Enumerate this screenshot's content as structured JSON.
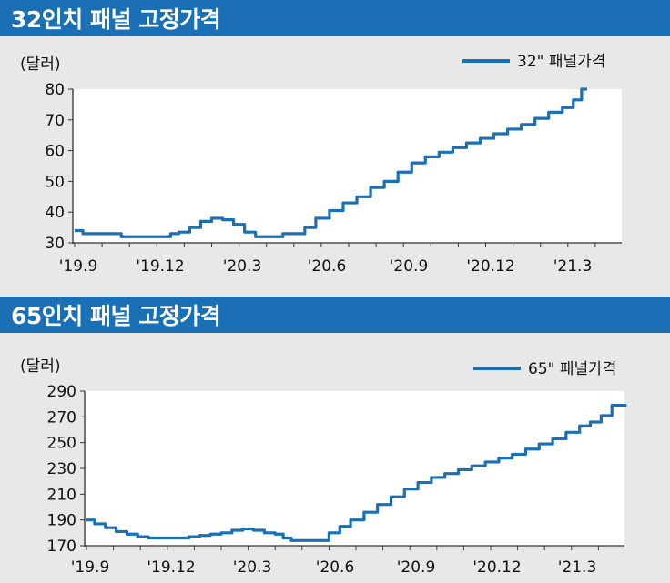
{
  "chart_data": [
    {
      "type": "line",
      "title": "32인치 패널 고정가격",
      "ylabel": "(달러)",
      "ylim": [
        30,
        80
      ],
      "yticks": [
        30,
        40,
        50,
        60,
        70,
        80
      ],
      "xticks": [
        "'19.9",
        "'19.12",
        "'20.3",
        "'20.6",
        "'20.9",
        "'20.12",
        "'21.3"
      ],
      "x_months": [
        "2019-09",
        "2019-10",
        "2019-11",
        "2019-12",
        "2020-01",
        "2020-02",
        "2020-03",
        "2020-04",
        "2020-05",
        "2020-06",
        "2020-07",
        "2020-08",
        "2020-09",
        "2020-10",
        "2020-11",
        "2020-12",
        "2021-01",
        "2021-02",
        "2021-03",
        "2021-04",
        "2021-05"
      ],
      "legend_position": "top-right",
      "grid": false,
      "color": "#1a6fb5",
      "series": [
        {
          "name": "32\" 패널가격",
          "values": [
            34,
            33,
            33,
            33,
            32,
            32,
            32,
            32,
            33,
            33.5,
            35,
            37,
            38,
            37.5,
            36,
            33.5,
            32,
            32,
            32,
            33,
            33,
            35,
            38,
            40.5,
            43,
            45,
            48,
            50,
            53,
            56,
            58,
            59.5,
            61,
            62.5,
            64,
            65.5,
            67,
            68.5,
            70.5,
            72.5,
            74,
            76.5,
            80
          ],
          "x": [
            0,
            0.3,
            0.6,
            1.3,
            1.7,
            2.0,
            2.5,
            3.0,
            3.5,
            3.8,
            4.2,
            4.6,
            5.0,
            5.4,
            5.8,
            6.2,
            6.6,
            7.0,
            7.3,
            7.6,
            8.0,
            8.4,
            8.8,
            9.3,
            9.8,
            10.3,
            10.8,
            11.3,
            11.8,
            12.3,
            12.8,
            13.3,
            13.8,
            14.3,
            14.8,
            15.3,
            15.8,
            16.3,
            16.8,
            17.3,
            17.8,
            18.2,
            18.5
          ]
        }
      ]
    },
    {
      "type": "line",
      "title": "65인치 패널 고정가격",
      "ylabel": "(달러)",
      "ylim": [
        170,
        290
      ],
      "yticks": [
        170,
        190,
        210,
        230,
        250,
        270,
        290
      ],
      "xticks": [
        "'19.9",
        "'19.12",
        "'20.3",
        "'20.6",
        "'20.9",
        "'20.12",
        "'21.3"
      ],
      "x_months": [
        "2019-09",
        "2019-10",
        "2019-11",
        "2019-12",
        "2020-01",
        "2020-02",
        "2020-03",
        "2020-04",
        "2020-05",
        "2020-06",
        "2020-07",
        "2020-08",
        "2020-09",
        "2020-10",
        "2020-11",
        "2020-12",
        "2021-01",
        "2021-02",
        "2021-03",
        "2021-04",
        "2021-05"
      ],
      "legend_position": "top-right",
      "grid": false,
      "color": "#1a6fb5",
      "series": [
        {
          "name": "65\" 패널가격",
          "values": [
            190,
            187,
            184,
            181,
            179,
            177,
            176,
            176,
            176,
            177,
            178,
            179,
            180,
            182,
            183,
            182,
            180,
            179,
            176,
            174,
            174,
            174,
            174,
            180,
            185,
            190,
            196,
            202,
            208,
            214,
            219,
            223,
            226,
            229,
            232,
            235,
            238,
            241,
            245,
            249,
            253,
            258,
            263,
            266,
            271,
            279,
            279
          ],
          "x": [
            0,
            0.3,
            0.7,
            1.1,
            1.5,
            1.9,
            2.3,
            2.8,
            3.3,
            3.8,
            4.2,
            4.6,
            5.0,
            5.4,
            5.8,
            6.2,
            6.6,
            7.0,
            7.3,
            7.6,
            8.0,
            8.4,
            8.7,
            9.0,
            9.4,
            9.8,
            10.3,
            10.8,
            11.3,
            11.8,
            12.3,
            12.8,
            13.3,
            13.8,
            14.3,
            14.8,
            15.3,
            15.8,
            16.3,
            16.8,
            17.3,
            17.8,
            18.3,
            18.7,
            19.1,
            19.5,
            20.0
          ]
        }
      ]
    }
  ]
}
